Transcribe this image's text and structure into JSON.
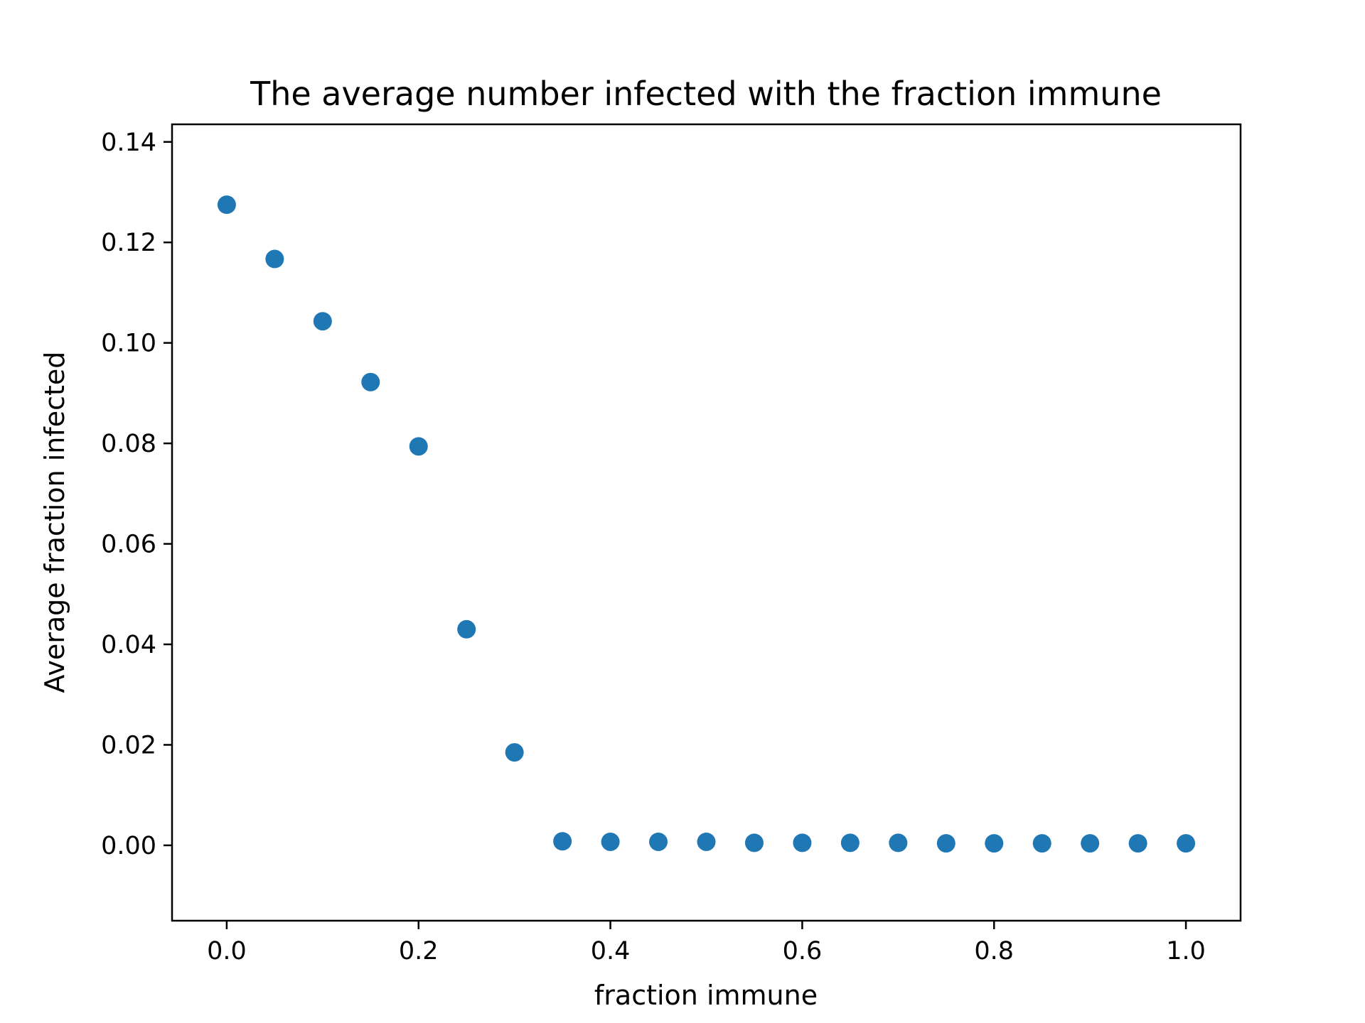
{
  "chart_data": {
    "type": "scatter",
    "title": "The average number infected with the fraction immune",
    "xlabel": "fraction immune",
    "ylabel": "Average fraction infected",
    "xlim": [
      -0.057,
      1.057
    ],
    "ylim": [
      -0.015,
      0.1435
    ],
    "x_ticks": [
      "0.0",
      "0.2",
      "0.4",
      "0.6",
      "0.8",
      "1.0"
    ],
    "y_ticks": [
      "0.00",
      "0.02",
      "0.04",
      "0.06",
      "0.08",
      "0.10",
      "0.12",
      "0.14"
    ],
    "grid": false,
    "marker_color": "#1f77b4",
    "series": [
      {
        "x": [
          0.0,
          0.05,
          0.1,
          0.15,
          0.2,
          0.25,
          0.3,
          0.35,
          0.4,
          0.45,
          0.5,
          0.55,
          0.6,
          0.65,
          0.7,
          0.75,
          0.8,
          0.85,
          0.9,
          0.95,
          1.0
        ],
        "y": [
          0.1275,
          0.1167,
          0.1043,
          0.0922,
          0.0794,
          0.043,
          0.0185,
          0.0008,
          0.0007,
          0.0007,
          0.0007,
          0.0005,
          0.0005,
          0.0005,
          0.0005,
          0.0004,
          0.0004,
          0.0004,
          0.0004,
          0.0004,
          0.0004
        ]
      }
    ]
  }
}
